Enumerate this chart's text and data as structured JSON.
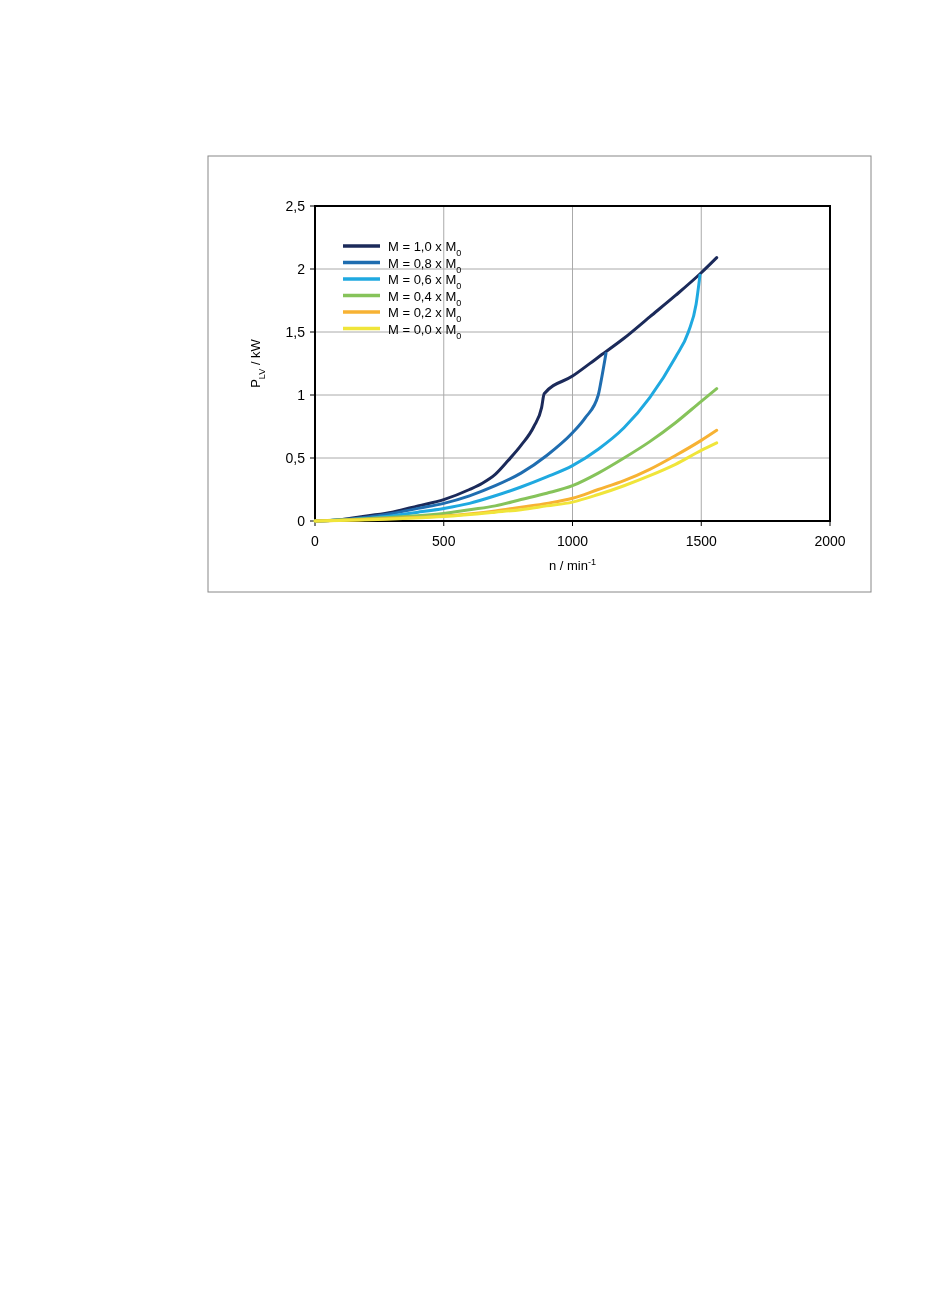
{
  "chart_data": {
    "type": "line",
    "xlabel": "n / min$^{-1}$",
    "ylabel": "P$_{LV}$ / kW",
    "xlim": [
      0,
      2000
    ],
    "xticks": [
      0,
      500,
      1000,
      1500,
      2000
    ],
    "ylim": [
      0,
      2.5
    ],
    "yticks": [
      0,
      {
        "value": 0.5,
        "label": "0,5"
      },
      1,
      {
        "value": 1.5,
        "label": "1,5"
      },
      2,
      {
        "value": 2.5,
        "label": "2,5"
      }
    ],
    "grid": true,
    "legend": "top left",
    "marker": "none",
    "line_style": "solid",
    "series": [
      {
        "name": "M = 1,0 x M$_{0}$",
        "color": "#1b2a5a",
        "x": [
          0,
          100,
          200,
          300,
          400,
          500,
          600,
          650,
          700,
          750,
          800,
          850,
          880,
          890,
          1000,
          1100,
          1200,
          1300,
          1400,
          1500,
          1560
        ],
        "values": [
          0,
          0.01,
          0.04,
          0.07,
          0.12,
          0.17,
          0.25,
          0.3,
          0.37,
          0.48,
          0.6,
          0.75,
          0.9,
          1.01,
          1.15,
          1.3,
          1.45,
          1.62,
          1.79,
          1.97,
          2.09
        ]
      },
      {
        "name": "M = 0,8 x M$_{0}$",
        "color": "#1f6db0",
        "x": [
          0,
          100,
          200,
          300,
          400,
          500,
          600,
          700,
          800,
          900,
          1000,
          1050,
          1100,
          1110,
          1130
        ],
        "values": [
          0,
          0.01,
          0.03,
          0.06,
          0.1,
          0.14,
          0.2,
          0.28,
          0.38,
          0.52,
          0.7,
          0.82,
          1.0,
          1.1,
          1.33
        ]
      },
      {
        "name": "M = 0,6 x M$_{0}$",
        "color": "#1fa9e0",
        "x": [
          0,
          200,
          400,
          500,
          600,
          700,
          800,
          900,
          1000,
          1100,
          1200,
          1300,
          1400,
          1450,
          1480,
          1495
        ],
        "values": [
          0,
          0.02,
          0.07,
          0.1,
          0.14,
          0.2,
          0.27,
          0.35,
          0.44,
          0.57,
          0.74,
          0.98,
          1.3,
          1.5,
          1.72,
          1.95
        ]
      },
      {
        "name": "M = 0,4 x M$_{0}$",
        "color": "#86c35a",
        "x": [
          0,
          300,
          500,
          600,
          700,
          800,
          900,
          1000,
          1100,
          1200,
          1300,
          1400,
          1500,
          1560
        ],
        "values": [
          0,
          0.03,
          0.06,
          0.09,
          0.12,
          0.17,
          0.22,
          0.28,
          0.38,
          0.5,
          0.63,
          0.78,
          0.95,
          1.05
        ]
      },
      {
        "name": "M = 0,2 x M$_{0}$",
        "color": "#f7b233",
        "x": [
          0,
          300,
          500,
          700,
          800,
          900,
          1000,
          1100,
          1200,
          1300,
          1400,
          1500,
          1560
        ],
        "values": [
          0,
          0.02,
          0.04,
          0.08,
          0.11,
          0.14,
          0.18,
          0.25,
          0.32,
          0.41,
          0.52,
          0.64,
          0.72
        ]
      },
      {
        "name": "M = 0,0 x M$_{0}$",
        "color": "#f0e53a",
        "x": [
          0,
          300,
          500,
          700,
          800,
          900,
          1000,
          1100,
          1200,
          1300,
          1400,
          1500,
          1560
        ],
        "values": [
          0,
          0.015,
          0.035,
          0.07,
          0.09,
          0.12,
          0.15,
          0.21,
          0.28,
          0.36,
          0.45,
          0.56,
          0.62
        ]
      }
    ]
  }
}
